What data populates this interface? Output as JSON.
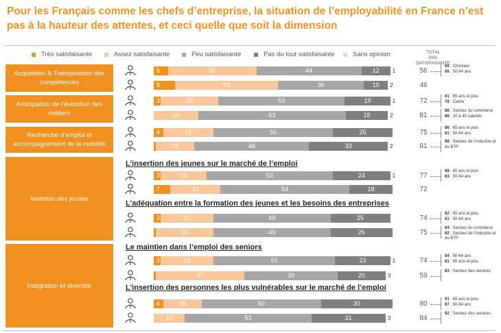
{
  "title": "Pour les Français comme les chefs d’entreprise, la situation de l’employabilité en France n’est pas à la hauteur des attentes, et ceci quelle que soit la dimension",
  "colors": {
    "accent": "#f0901e",
    "tres": "#f0901e",
    "assez": "#f9c79a",
    "peu": "#a6a6a6",
    "pas": "#7f7f7f",
    "sans": "#d9d9d9"
  },
  "chart_data": {
    "type": "bar",
    "orientation": "horizontal-stacked",
    "legend": [
      "Très satisfaisante",
      "Assez satisfaisante",
      "Peu satisfaisante",
      "Pas du tout satisfaisante",
      "Sans opinion"
    ],
    "total_header": [
      "TOTAL",
      "PAS SATISFAISANTE"
    ],
    "subtitles": [
      "L’insertion des jeunes sur le marché de l’emploi",
      "L’adéquation entre la formation des jeunes et les besoins des entreprises",
      "Le maintien dans l’emploi des seniors",
      "L’insertion des personnes les plus vulnérables sur le marché de l’emploi"
    ],
    "categories": [
      "Acquisition & Transposition des compétences",
      "Anticipation de l’évolution des métiers",
      "Recherche d’emploi et accompagnement de la mobilité",
      "Insertion des jeunes",
      "Intégration et diversité"
    ],
    "rows": [
      {
        "respondent": "Français",
        "values": [
          6,
          37,
          44,
          12,
          1
        ],
        "labels": [
          "6",
          "37",
          "44",
          "12",
          "1"
        ],
        "total": "56",
        "notes": [
          [
            "69",
            " : Chômeur"
          ],
          [
            "66",
            " : 50-64 ans"
          ]
        ]
      },
      {
        "respondent": "Chefs d’entreprise",
        "values": [
          9,
          43,
          36,
          10,
          2
        ],
        "labels": [
          "9",
          "43",
          "36",
          "10",
          "2"
        ],
        "total": "46",
        "notes": []
      },
      {
        "respondent": "Français",
        "values": [
          3,
          24,
          53,
          19,
          1
        ],
        "labels": [
          "3",
          "24",
          "53",
          "19",
          "1"
        ],
        "total": "72",
        "notes": [
          [
            "81",
            " : 65 ans et plus"
          ],
          [
            "78",
            " : Cadre"
          ]
        ]
      },
      {
        "respondent": "Chefs d’entreprise",
        "values": [
          0,
          19,
          63,
          18,
          2
        ],
        "labels": [
          "",
          "19",
          "63",
          "18",
          "2"
        ],
        "total": "81",
        "notes": [
          [
            "88",
            " : Secteur du commerce"
          ],
          [
            "86",
            " : 10 à 49 salariés"
          ]
        ]
      },
      {
        "respondent": "Français",
        "values": [
          4,
          21,
          50,
          25,
          0
        ],
        "labels": [
          "4",
          "21",
          "50",
          "25",
          ""
        ],
        "total": "75",
        "notes": [
          [
            "86",
            " : 65 ans et plus"
          ],
          [
            "81",
            " : 50-64 ans"
          ]
        ]
      },
      {
        "respondent": "Chefs d’entreprise",
        "values": [
          1,
          16,
          48,
          33,
          2
        ],
        "labels": [
          "",
          "16",
          "48",
          "33",
          "2"
        ],
        "total": "81",
        "notes": [
          [
            "88",
            " : Secteur de l’industrie et du BTP"
          ]
        ]
      },
      {
        "respondent": "Français",
        "values": [
          3,
          19,
          53,
          24,
          1
        ],
        "labels": [
          "3",
          "19",
          "53",
          "24",
          "1"
        ],
        "total": "77",
        "notes": [
          [
            "88",
            " : 65 ans et plus"
          ],
          [
            "83",
            " : 50-64 ans"
          ]
        ]
      },
      {
        "respondent": "Chefs d’entreprise",
        "values": [
          7,
          21,
          54,
          18,
          0
        ],
        "labels": [
          "7",
          "21",
          "54",
          "18",
          ""
        ],
        "total": "72",
        "notes": []
      },
      {
        "respondent": "Français",
        "values": [
          3,
          22,
          49,
          25,
          1
        ],
        "labels": [
          "3",
          "22",
          "49",
          "25",
          ""
        ],
        "total": "74",
        "notes": [
          [
            "82",
            " : 65 ans et plus"
          ],
          [
            "81",
            " : 50-64 ans"
          ]
        ]
      },
      {
        "respondent": "Chefs d’entreprise",
        "values": [
          1,
          24,
          49,
          26,
          0
        ],
        "labels": [
          "1",
          "24",
          "49",
          "26",
          ""
        ],
        "total": "75",
        "notes": [
          [
            "84",
            " : Secteur du commerce"
          ],
          [
            "82",
            " : Secteur de l’industrie et du BTP"
          ]
        ]
      },
      {
        "respondent": "Français",
        "values": [
          3,
          22,
          51,
          23,
          1
        ],
        "labels": [
          "3",
          "22",
          "51",
          "23",
          "1"
        ],
        "total": "74",
        "notes": [
          [
            "84",
            " : 50-64 ans"
          ],
          [
            "81",
            " : 65 ans et plus"
          ]
        ]
      },
      {
        "respondent": "Chefs d’entreprise",
        "values": [
          1,
          37,
          39,
          20,
          3
        ],
        "labels": [
          "",
          "37",
          "39",
          "20",
          "3"
        ],
        "total": "59",
        "notes": [
          [
            "83",
            " : Secteur des services"
          ]
        ]
      },
      {
        "respondent": "Français",
        "values": [
          4,
          16,
          50,
          30,
          0
        ],
        "labels": [
          "4",
          "16",
          "50",
          "30",
          ""
        ],
        "total": "80",
        "notes": [
          [
            "91",
            " : 65 ans et plus"
          ],
          [
            "87",
            " : 50-64 ans"
          ]
        ]
      },
      {
        "respondent": "Chefs d’entreprise",
        "values": [
          0,
          13,
          53,
          31,
          3
        ],
        "labels": [
          "",
          "13",
          "53",
          "31",
          "3"
        ],
        "total": "84",
        "notes": [
          [
            "92",
            " : Secteur des services"
          ]
        ]
      }
    ]
  }
}
